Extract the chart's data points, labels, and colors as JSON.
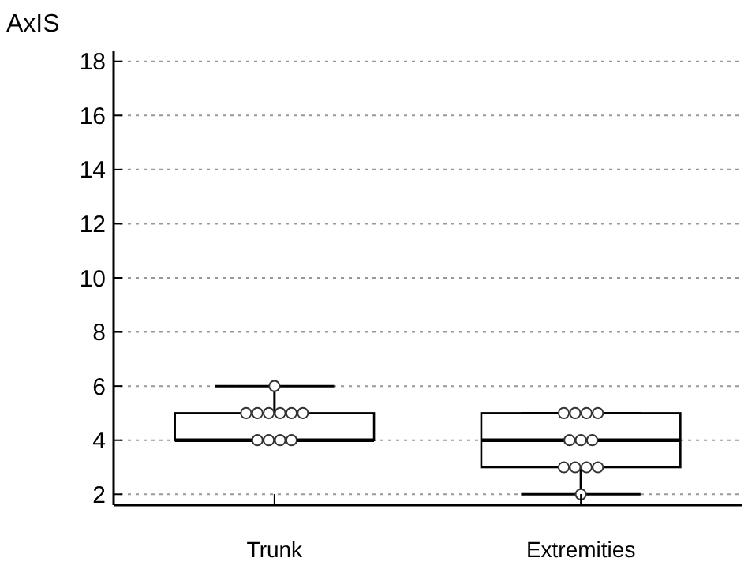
{
  "chart_data": {
    "type": "box",
    "ylabel": "AxIS",
    "categories": [
      "Trunk",
      "Extremities"
    ],
    "boxes": [
      {
        "low": 4,
        "q1": 4,
        "median": 4,
        "q3": 5,
        "high": 6
      },
      {
        "low": 2,
        "q1": 3,
        "median": 4,
        "q3": 5,
        "high": 5
      }
    ],
    "series": [
      {
        "type": "scatter",
        "color": "#ffffff",
        "marker": "circle",
        "x": [
          "Trunk",
          "Trunk",
          "Trunk",
          "Trunk",
          "Trunk",
          "Trunk",
          "Trunk",
          "Trunk",
          "Trunk",
          "Trunk",
          "Trunk",
          "Extremities",
          "Extremities",
          "Extremities",
          "Extremities",
          "Extremities",
          "Extremities",
          "Extremities",
          "Extremities",
          "Extremities",
          "Extremities",
          "Extremities",
          "Extremities"
        ],
        "values": [
          4,
          4,
          4,
          4,
          5,
          5,
          5,
          5,
          5,
          5,
          6,
          2,
          3,
          3,
          3,
          3,
          4,
          4,
          4,
          5,
          5,
          5,
          5
        ]
      }
    ],
    "ylim": [
      1.6,
      18.4
    ],
    "yticks": [
      2,
      4,
      6,
      8,
      10,
      12,
      14,
      16,
      18
    ],
    "grid": "y"
  }
}
